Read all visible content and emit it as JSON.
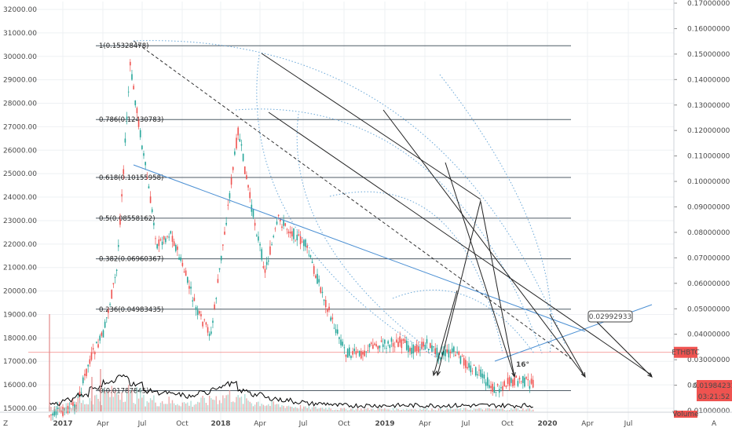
{
  "chart_data": {
    "type": "line",
    "title": "",
    "xlabel": "",
    "ylabel": "",
    "x_ticks": [
      "2017",
      "Apr",
      "Jul",
      "Oct",
      "2018",
      "Apr",
      "Jul",
      "Oct",
      "2019",
      "Apr",
      "Jul",
      "Oct",
      "2020",
      "Apr",
      "Jul"
    ],
    "left_axis": {
      "ticks": [
        "32000.00",
        "31000.00",
        "30000.00",
        "29000.00",
        "28000.00",
        "27000.00",
        "26000.00",
        "25000.00",
        "24000.00",
        "23000.00",
        "22000.00",
        "21000.00",
        "20000.00",
        "19000.00",
        "18000.00",
        "17000.00",
        "16000.00",
        "15000.00"
      ],
      "ylim": [
        14700,
        32300
      ]
    },
    "right_axis": {
      "ticks": [
        "0.17000000",
        "0.16000000",
        "0.15000000",
        "0.14000000",
        "0.13000000",
        "0.12000000",
        "0.11000000",
        "0.10000000",
        "0.09000000",
        "0.08000000",
        "0.07000000",
        "0.06000000",
        "0.05000000",
        "0.04000000",
        "0.03000000",
        "0.02000000",
        "0.01000000"
      ],
      "ylim": [
        0.0073,
        0.1718
      ],
      "scale": "linear"
    },
    "series": [
      {
        "name": "",
        "type": "candlestick",
        "values_dates": [
          "2016-12",
          "2017-02",
          "2017-03",
          "2017-04",
          "2017-05",
          "2017-06",
          "2017-07",
          "2017-08",
          "2017-09",
          "2017-10",
          "2017-11",
          "2017-12",
          "2018-01",
          "2018-02",
          "2018-03",
          "2018-04",
          "2018-05",
          "2018-06",
          "2018-07",
          "2018-08",
          "2018-09",
          "2018-10",
          "2018-11",
          "2018-12",
          "2019-01",
          "2019-02",
          "2019-03",
          "2019-04",
          "2019-05",
          "2019-06",
          "2019-07",
          "2019-08",
          "2019-09",
          "2019-10",
          "2019-11",
          "2019-12"
        ],
        "values": [
          0.008,
          0.012,
          0.03,
          0.04,
          0.065,
          0.145,
          0.11,
          0.075,
          0.08,
          0.065,
          0.048,
          0.04,
          0.08,
          0.12,
          0.09,
          0.065,
          0.085,
          0.08,
          0.075,
          0.06,
          0.045,
          0.033,
          0.032,
          0.036,
          0.036,
          0.037,
          0.034,
          0.036,
          0.032,
          0.033,
          0.028,
          0.024,
          0.018,
          0.021,
          0.022,
          0.02
        ]
      },
      {
        "name": "Volume",
        "type": "volume",
        "values": [
          3,
          5,
          8,
          12,
          15,
          18,
          14,
          10,
          9,
          8,
          7,
          9,
          12,
          14,
          10,
          8,
          6,
          5,
          4,
          3,
          3,
          2,
          2,
          2,
          2,
          2,
          2,
          2,
          2,
          2,
          2,
          2,
          2,
          2,
          2,
          2
        ]
      }
    ],
    "fib_levels": [
      {
        "label": "1(0.15328478)",
        "value": 0.15328478
      },
      {
        "label": "0.786(0.12430783)",
        "value": 0.12430783
      },
      {
        "label": "0.618(0.10155958)",
        "value": 0.10155958
      },
      {
        "label": "0.5(0.08558162)",
        "value": 0.08558162
      },
      {
        "label": "0.382(0.06960367)",
        "value": 0.06960367
      },
      {
        "label": "0.236(0.04983435)",
        "value": 0.04983435
      },
      {
        "label": "0(0.01787845)",
        "value": 0.01787845
      }
    ],
    "annotations": {
      "angle_label": "16°",
      "price_callout": "0.02992933"
    },
    "right_badges": {
      "symbol_label": "ETHBTC",
      "last_price": "0.01984231",
      "countdown": "03:21:52",
      "volume_label": "Volume"
    },
    "bottom_left_label": "Z",
    "bottom_right_label": "A",
    "colors": {
      "up": "#26a69a",
      "down": "#ef5350",
      "volume": "#000000",
      "fib_line": "#555555",
      "trendline": "#4a8fd3",
      "badge_red": "#ef5350"
    }
  }
}
